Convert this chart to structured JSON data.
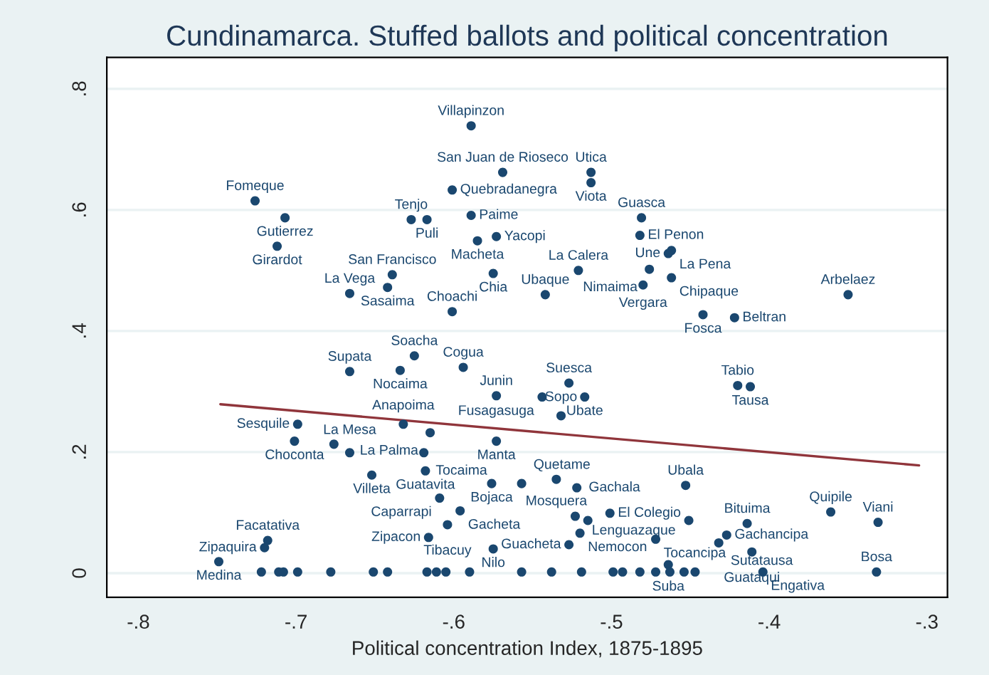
{
  "chart_data": {
    "type": "scatter",
    "title": "Cundinamarca. Stuffed ballots and political concentration",
    "xlabel": "Political concentration Index, 1875-1895",
    "xlim": [
      -0.82,
      -0.287
    ],
    "ylim": [
      -0.04,
      0.852
    ],
    "xticks": [
      {
        "value": -0.8,
        "label": "-.8"
      },
      {
        "value": -0.7,
        "label": "-.7"
      },
      {
        "value": -0.6,
        "label": "-.6"
      },
      {
        "value": -0.5,
        "label": "-.5"
      },
      {
        "value": -0.4,
        "label": "-.4"
      },
      {
        "value": -0.3,
        "label": "-.3"
      }
    ],
    "yticks": [
      {
        "value": 0,
        "label": "0"
      },
      {
        "value": 0.2,
        "label": ".2"
      },
      {
        "value": 0.4,
        "label": ".4"
      },
      {
        "value": 0.6,
        "label": ".6"
      },
      {
        "value": 0.8,
        "label": ".8"
      }
    ],
    "grid": "y",
    "marker": "circle",
    "legend": false,
    "series": [
      {
        "color": "#1a476f",
        "x": [
          -0.589,
          -0.569,
          -0.601,
          -0.726,
          -0.707,
          -0.589,
          -0.627,
          -0.617,
          -0.585,
          -0.573,
          -0.712,
          -0.639,
          -0.575,
          -0.642,
          -0.666,
          -0.601,
          -0.542,
          -0.521,
          -0.513,
          -0.513,
          -0.481,
          -0.482,
          -0.462,
          -0.464,
          -0.476,
          -0.48,
          -0.462,
          -0.35,
          -0.442,
          -0.422,
          -0.625,
          -0.666,
          -0.634,
          -0.594,
          -0.573,
          -0.544,
          -0.699,
          -0.632,
          -0.615,
          -0.701,
          -0.676,
          -0.666,
          -0.573,
          -0.619,
          -0.652,
          -0.618,
          -0.576,
          -0.557,
          -0.535,
          -0.522,
          -0.453,
          -0.527,
          -0.517,
          -0.532,
          -0.42,
          -0.412,
          -0.609,
          -0.596,
          -0.604,
          -0.616,
          -0.575,
          -0.718,
          -0.72,
          -0.749,
          -0.501,
          -0.523,
          -0.515,
          -0.451,
          -0.414,
          -0.361,
          -0.331,
          -0.52,
          -0.427,
          -0.472,
          -0.432,
          -0.411,
          -0.527,
          -0.404,
          -0.332,
          -0.464,
          -0.722,
          -0.711,
          -0.708,
          -0.699,
          -0.678,
          -0.651,
          -0.642,
          -0.617,
          -0.611,
          -0.605,
          -0.59,
          -0.557,
          -0.538,
          -0.519,
          -0.499,
          -0.493,
          -0.482,
          -0.472,
          -0.463,
          -0.454,
          -0.447
        ],
        "values": [
          0.739,
          0.662,
          0.633,
          0.615,
          0.587,
          0.591,
          0.584,
          0.584,
          0.549,
          0.556,
          0.54,
          0.493,
          0.495,
          0.472,
          0.462,
          0.432,
          0.46,
          0.5,
          0.662,
          0.645,
          0.587,
          0.558,
          0.533,
          0.528,
          0.502,
          0.476,
          0.488,
          0.46,
          0.427,
          0.422,
          0.359,
          0.333,
          0.335,
          0.34,
          0.293,
          0.291,
          0.246,
          0.246,
          0.232,
          0.218,
          0.213,
          0.199,
          0.218,
          0.199,
          0.162,
          0.169,
          0.148,
          0.148,
          0.155,
          0.141,
          0.145,
          0.314,
          0.291,
          0.26,
          0.31,
          0.308,
          0.124,
          0.103,
          0.08,
          0.059,
          0.04,
          0.054,
          0.042,
          0.019,
          0.099,
          0.094,
          0.087,
          0.087,
          0.082,
          0.101,
          0.084,
          0.066,
          0.063,
          0.056,
          0.05,
          0.035,
          0.047,
          0.002,
          0.002,
          0.014,
          0.002,
          0.002,
          0.002,
          0.002,
          0.002,
          0.002,
          0.002,
          0.002,
          0.002,
          0.002,
          0.002,
          0.002,
          0.002,
          0.002,
          0.002,
          0.002,
          0.002,
          0.002,
          0.002,
          0.002,
          0.002
        ],
        "value_labels": [
          "Villapinzon",
          "San Juan de Rioseco",
          "Quebradanegra",
          "Fomeque",
          "Gutierrez",
          "Paime",
          "Tenjo",
          "Puli",
          "Macheta",
          "Yacopi",
          "Girardot",
          "San Francisco",
          "Chia",
          "Sasaima",
          "La Vega",
          "Choachi",
          "Ubaque",
          "La Calera",
          "Utica",
          "Viota",
          "Guasca",
          "El Penon",
          "La Pena",
          "Une",
          "Nimaima",
          "Vergara",
          "Chipaque",
          "Arbelaez",
          "Fosca",
          "Beltran",
          "Soacha",
          "Supata",
          "Nocaima",
          "Cogua",
          "Junin",
          "Fusagasuga",
          "Sesquile",
          "Anapoima",
          "La Palma",
          "Choconta",
          null,
          "La Mesa",
          "Manta",
          "Tocaima",
          "Villeta",
          "Guatavita",
          "Bojaca",
          "Quetame",
          "Mosquera",
          "Gachala",
          "Ubala",
          "Suesca",
          "Ubate",
          "Sopo",
          "Tabio",
          "Tausa",
          "Caparrapi",
          "Gacheta",
          "Tibacuy",
          "Zipacon",
          "Nilo",
          "Facatativa",
          "Zipaquira",
          "Medina",
          "El Colegio",
          null,
          "Lenguazaque",
          null,
          "Bituima",
          "Quipile",
          "Viani",
          "Nemocon",
          "Gachancipa",
          "Tocancipa",
          "Sutatausa",
          "Guataqui",
          "Guacheta",
          "Engativa",
          "Bosa",
          "Suba",
          null,
          null,
          null,
          null,
          null,
          null,
          null,
          null,
          null,
          null,
          null,
          null,
          null,
          null,
          null,
          null,
          null,
          null,
          null,
          null,
          null
        ]
      },
      {
        "type": "line",
        "marker": "none",
        "color": "#90353b",
        "x": [
          -0.748,
          -0.305
        ],
        "values": [
          0.279,
          0.178
        ]
      }
    ]
  }
}
